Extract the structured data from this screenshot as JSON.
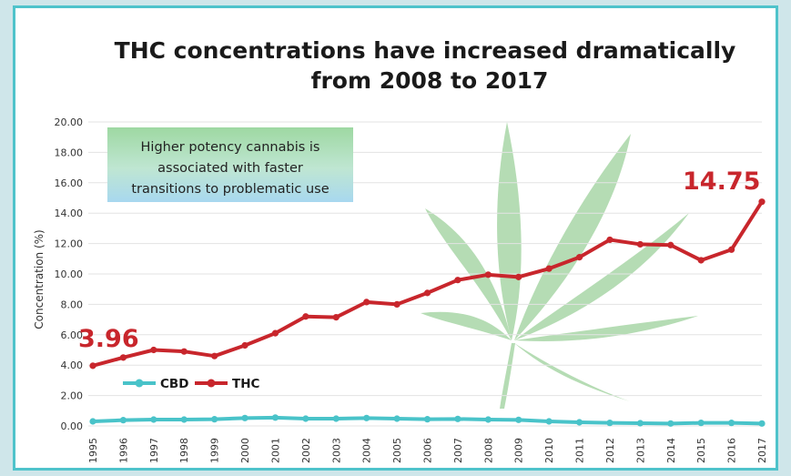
{
  "chart_data": {
    "type": "line",
    "title": [
      "THC concentrations have increased dramatically",
      "from 2008 to 2017"
    ],
    "ylabel": "Concentration (%)",
    "xlabel": "",
    "ylim": [
      0,
      20
    ],
    "y_ticks": [
      "0.00",
      "2.00",
      "4.00",
      "6.00",
      "8.00",
      "10.00",
      "12.00",
      "14.00",
      "16.00",
      "18.00",
      "20.00"
    ],
    "x": [
      "1995",
      "1996",
      "1997",
      "1998",
      "1999",
      "2000",
      "2001",
      "2002",
      "2003",
      "2004",
      "2005",
      "2006",
      "2007",
      "2008",
      "2009",
      "2010",
      "2011",
      "2012",
      "2013",
      "2014",
      "2015",
      "2016",
      "2017"
    ],
    "series": [
      {
        "name": "CBD",
        "color": "#49c3c9",
        "values": [
          0.3,
          0.38,
          0.42,
          0.42,
          0.44,
          0.52,
          0.55,
          0.48,
          0.48,
          0.52,
          0.48,
          0.44,
          0.46,
          0.42,
          0.4,
          0.3,
          0.24,
          0.2,
          0.18,
          0.16,
          0.2,
          0.2,
          0.16
        ]
      },
      {
        "name": "THC",
        "color": "#c8262c",
        "values": [
          3.96,
          4.5,
          5.0,
          4.9,
          4.6,
          5.3,
          6.1,
          7.2,
          7.15,
          8.15,
          8.0,
          8.75,
          9.6,
          9.95,
          9.8,
          10.35,
          11.1,
          12.25,
          11.95,
          11.9,
          10.9,
          11.6,
          14.75
        ]
      }
    ],
    "data_labels": {
      "first": "3.96",
      "last": "14.75"
    },
    "annotation": [
      "Higher potency cannabis is",
      "associated with faster",
      "transitions to problematic use"
    ],
    "legend": {
      "placement": "lower-left",
      "entries": [
        "CBD",
        "THC"
      ]
    },
    "grid": true
  }
}
